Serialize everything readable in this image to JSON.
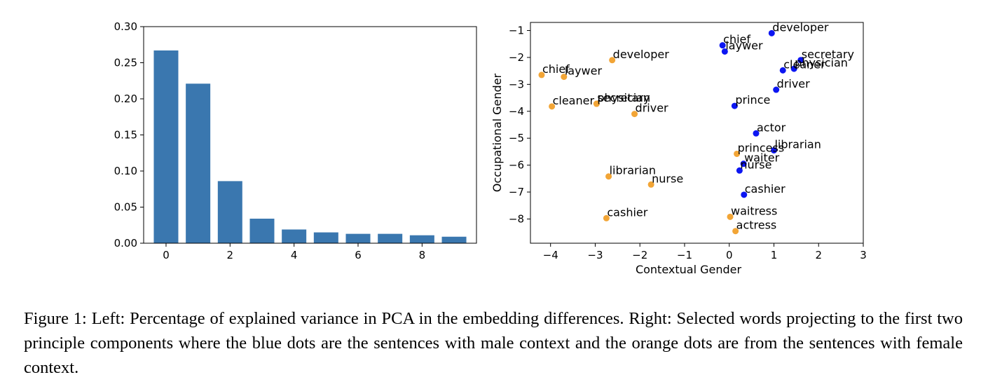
{
  "chart_data": [
    {
      "type": "bar",
      "categories": [
        "0",
        "1",
        "2",
        "3",
        "4",
        "5",
        "6",
        "7",
        "8",
        "9"
      ],
      "values": [
        0.267,
        0.221,
        0.086,
        0.034,
        0.019,
        0.015,
        0.013,
        0.013,
        0.011,
        0.009
      ],
      "xticks": [
        "0",
        "2",
        "4",
        "6",
        "8"
      ],
      "yticks": [
        "0.00",
        "0.05",
        "0.10",
        "0.15",
        "0.20",
        "0.25",
        "0.30"
      ],
      "xlim": [
        -0.7,
        9.7
      ],
      "ylim": [
        0,
        0.3
      ],
      "bar_color": "#3a77af",
      "title": "",
      "xlabel": "",
      "ylabel": ""
    },
    {
      "type": "scatter",
      "xlabel": "Contextual Gender",
      "ylabel": "Occupational Gender",
      "xticks": [
        "−4",
        "−3",
        "−2",
        "−1",
        "0",
        "1",
        "2",
        "3"
      ],
      "yticks": [
        "−1",
        "−2",
        "−3",
        "−4",
        "−5",
        "−6",
        "−7",
        "−8"
      ],
      "xlim": [
        -4.45,
        3.0
      ],
      "ylim": [
        -8.9,
        -0.7
      ],
      "series": [
        {
          "color": "#0c16f2",
          "points": [
            {
              "x": 0.95,
              "y": -1.1,
              "label": "developer"
            },
            {
              "x": -0.15,
              "y": -1.55,
              "label": "chief"
            },
            {
              "x": -0.1,
              "y": -1.78,
              "label": "laywer"
            },
            {
              "x": 1.6,
              "y": -2.1,
              "label": "secretary"
            },
            {
              "x": 1.45,
              "y": -2.42,
              "label": "physician"
            },
            {
              "x": 1.2,
              "y": -2.48,
              "label": "cleaner"
            },
            {
              "x": 1.05,
              "y": -3.2,
              "label": "driver"
            },
            {
              "x": 0.12,
              "y": -3.8,
              "label": "prince"
            },
            {
              "x": 0.6,
              "y": -4.82,
              "label": "actor"
            },
            {
              "x": 1.0,
              "y": -5.45,
              "label": "librarian"
            },
            {
              "x": 0.32,
              "y": -5.95,
              "label": "waiter"
            },
            {
              "x": 0.23,
              "y": -6.2,
              "label": "nurse"
            },
            {
              "x": 0.33,
              "y": -7.1,
              "label": "cashier"
            }
          ]
        },
        {
          "color": "#f2a536",
          "points": [
            {
              "x": -2.62,
              "y": -2.1,
              "label": "developer"
            },
            {
              "x": -4.2,
              "y": -2.65,
              "label": "chief"
            },
            {
              "x": -3.7,
              "y": -2.72,
              "label": "laywer"
            },
            {
              "x": -2.97,
              "y": -3.72,
              "label": "secretary"
            },
            {
              "x": -2.97,
              "y": -3.72,
              "label": "physician"
            },
            {
              "x": -3.97,
              "y": -3.82,
              "label": "cleaner"
            },
            {
              "x": -2.12,
              "y": -4.1,
              "label": "driver"
            },
            {
              "x": 0.17,
              "y": -5.58,
              "label": "princess"
            },
            {
              "x": -2.7,
              "y": -6.42,
              "label": "librarian"
            },
            {
              "x": -1.75,
              "y": -6.72,
              "label": "nurse"
            },
            {
              "x": -2.75,
              "y": -7.97,
              "label": "cashier"
            },
            {
              "x": 0.02,
              "y": -7.92,
              "label": "waitress"
            },
            {
              "x": 0.14,
              "y": -8.45,
              "label": "actress"
            }
          ]
        }
      ]
    }
  ],
  "caption": "Figure 1: Left: Percentage of explained variance in PCA in the embedding differences. Right: Selected words projecting to the first two principle components where the blue dots are the sentences with male context and the orange dots are from the sentences with female context."
}
